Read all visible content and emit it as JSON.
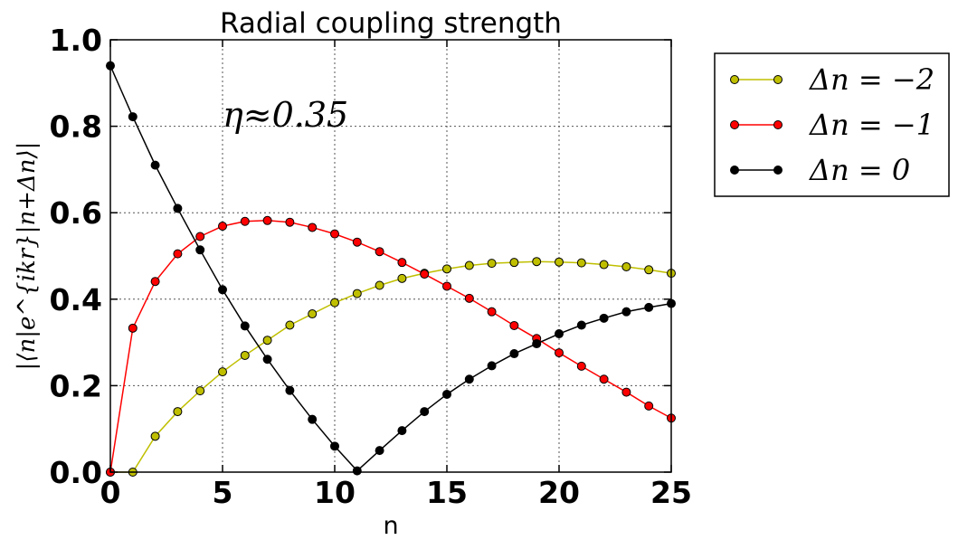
{
  "chart_data": {
    "type": "line",
    "title": "Radial coupling strength",
    "xlabel": "n",
    "ylabel": "|⟨n|e^{ikr}|n+Δn⟩|",
    "xlim": [
      0,
      25
    ],
    "ylim": [
      0,
      1.0
    ],
    "xticks": [
      "0",
      "5",
      "10",
      "15",
      "20",
      "25"
    ],
    "yticks": [
      "0.0",
      "0.2",
      "0.4",
      "0.6",
      "0.8",
      "1.0"
    ],
    "grid": true,
    "legend_position": "outside-right-top",
    "annotation": "η≈0.35",
    "x": [
      0,
      1,
      2,
      3,
      4,
      5,
      6,
      7,
      8,
      9,
      10,
      11,
      12,
      13,
      14,
      15,
      16,
      17,
      18,
      19,
      20,
      21,
      22,
      23,
      24,
      25
    ],
    "series": [
      {
        "name": "Δn = −2",
        "color": "#bfbf00",
        "marker_edge": "#000000",
        "values": [
          0.0,
          0.0,
          0.083,
          0.14,
          0.188,
          0.232,
          0.27,
          0.305,
          0.34,
          0.366,
          0.392,
          0.413,
          0.432,
          0.448,
          0.46,
          0.47,
          0.478,
          0.483,
          0.485,
          0.487,
          0.486,
          0.484,
          0.48,
          0.475,
          0.468,
          0.46
        ]
      },
      {
        "name": "Δn = −1",
        "color": "#ff0000",
        "marker_edge": "#000000",
        "values": [
          0.0,
          0.333,
          0.441,
          0.505,
          0.545,
          0.569,
          0.58,
          0.582,
          0.578,
          0.566,
          0.551,
          0.532,
          0.51,
          0.485,
          0.458,
          0.43,
          0.402,
          0.371,
          0.339,
          0.309,
          0.276,
          0.245,
          0.215,
          0.185,
          0.153,
          0.125
        ]
      },
      {
        "name": "Δn = 0",
        "color": "#000000",
        "marker_edge": "#000000",
        "values": [
          0.94,
          0.822,
          0.71,
          0.61,
          0.514,
          0.422,
          0.338,
          0.261,
          0.189,
          0.122,
          0.06,
          0.003,
          0.05,
          0.096,
          0.14,
          0.18,
          0.215,
          0.246,
          0.274,
          0.297,
          0.32,
          0.34,
          0.356,
          0.371,
          0.381,
          0.39
        ]
      }
    ]
  }
}
